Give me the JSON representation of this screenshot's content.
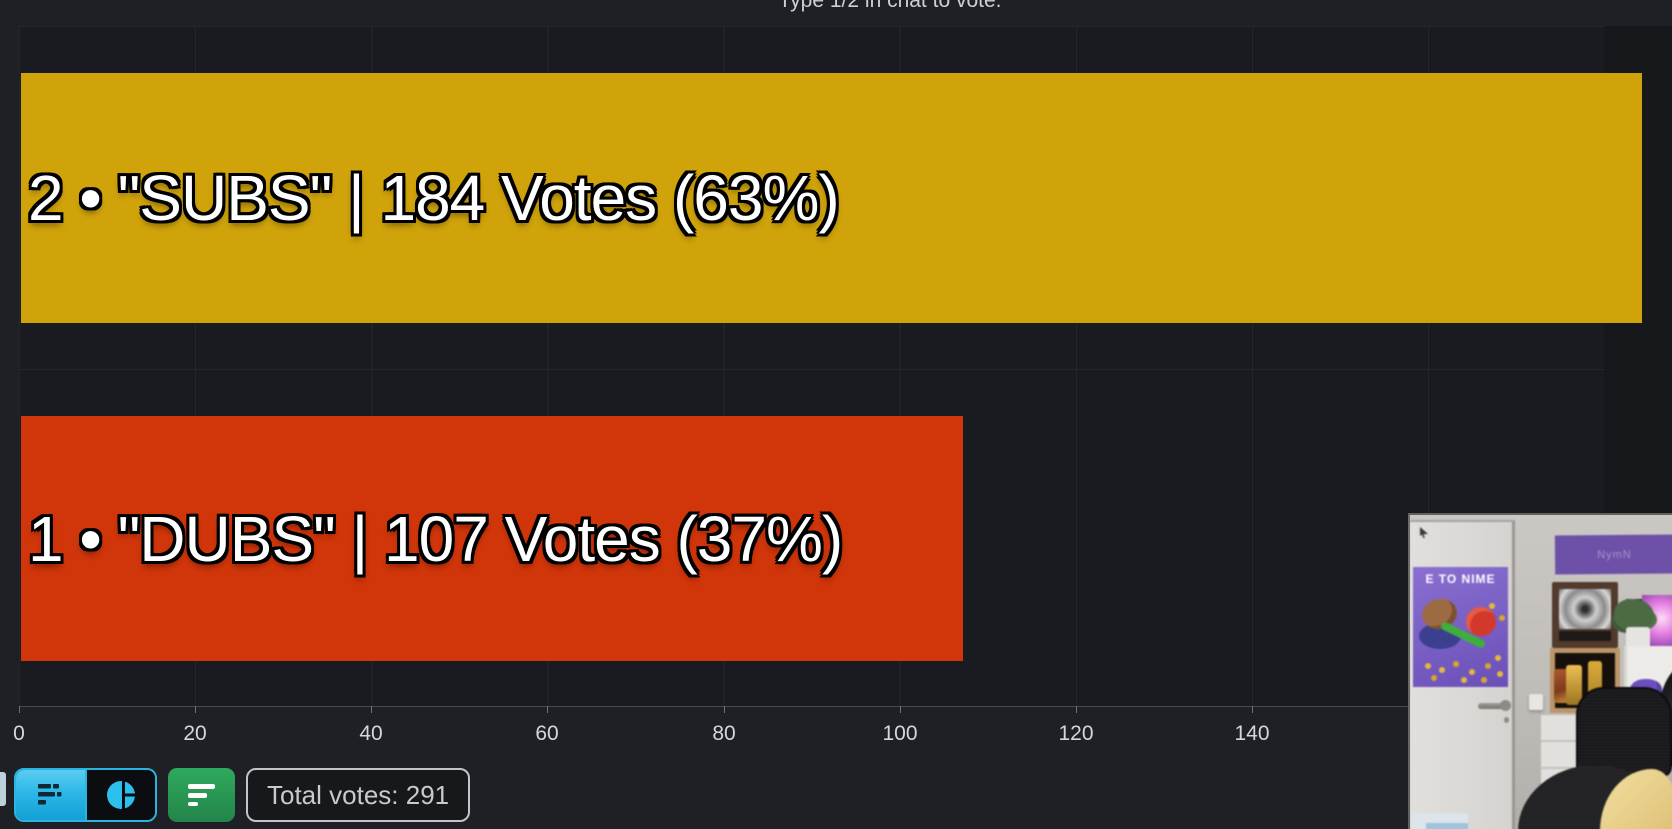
{
  "chart_data": {
    "type": "bar",
    "orientation": "horizontal",
    "title": "Type 1/2 in chat to vote.",
    "categories": [
      "2 • \"SUBS\"",
      "1 • \"DUBS\""
    ],
    "values": [
      184,
      107
    ],
    "percentages": [
      63,
      37
    ],
    "bar_labels": [
      "2 • \"SUBS\" | 184 Votes (63%)",
      "1 • \"DUBS\" | 107 Votes (37%)"
    ],
    "bar_colors": [
      "#d0a30b",
      "#d1350a"
    ],
    "x_ticks": [
      0,
      20,
      40,
      60,
      80,
      100,
      120,
      140
    ],
    "xlim": [
      0,
      187
    ],
    "grid": true,
    "legend": false,
    "total_votes": 291
  },
  "toolbar": {
    "total_votes_label": "Total votes: 291",
    "view_toggle": {
      "active": "bar",
      "options": [
        "bar-chart-view",
        "pie-chart-view"
      ]
    },
    "sort_button": "sort-bars"
  },
  "colors": {
    "background": "#1f2025",
    "plot_background": "#1a1b20",
    "gridline": "#25262c",
    "bar_yellow": "#d0a30b",
    "bar_red": "#d1350a",
    "accent_cyan": "#2ab4e2",
    "accent_green": "#2aa156",
    "bar_label_text": "#ffffff",
    "tick_text": "#d6d7da"
  },
  "webcam": {
    "poster_text": "E TO NIME",
    "sign_text": "NymN"
  }
}
